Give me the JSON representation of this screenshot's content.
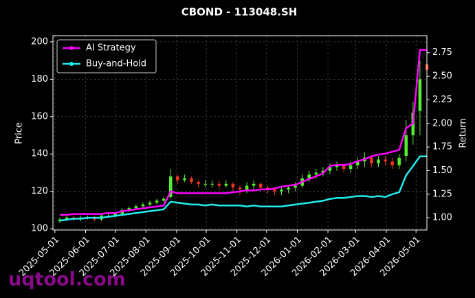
{
  "chart_data": {
    "type": "candlestick",
    "title": "CBOND - 113048.SH",
    "ylabel": "Price",
    "y2label": "Return",
    "watermark": "uqtool.com",
    "x": [
      "2025-05-06",
      "2025-05-13",
      "2025-05-20",
      "2025-05-27",
      "2025-06-03",
      "2025-06-10",
      "2025-06-17",
      "2025-06-24",
      "2025-07-01",
      "2025-07-08",
      "2025-07-15",
      "2025-07-22",
      "2025-07-29",
      "2025-08-05",
      "2025-08-12",
      "2025-08-19",
      "2025-08-26",
      "2025-09-02",
      "2025-09-09",
      "2025-09-16",
      "2025-09-23",
      "2025-09-30",
      "2025-10-07",
      "2025-10-14",
      "2025-10-21",
      "2025-10-28",
      "2025-11-04",
      "2025-11-11",
      "2025-11-18",
      "2025-11-25",
      "2025-12-02",
      "2025-12-09",
      "2025-12-16",
      "2025-12-23",
      "2025-12-30",
      "2026-01-06",
      "2026-01-13",
      "2026-01-20",
      "2026-01-27",
      "2026-02-03",
      "2026-02-10",
      "2026-02-17",
      "2026-02-24",
      "2026-03-03",
      "2026-03-10",
      "2026-03-17",
      "2026-03-24",
      "2026-03-31",
      "2026-04-07",
      "2026-04-14",
      "2026-04-21",
      "2026-04-28",
      "2026-05-05",
      "2026-05-12"
    ],
    "open": [
      104,
      105,
      106,
      105,
      106,
      106,
      105,
      107,
      107,
      108,
      110,
      111,
      112,
      113,
      114,
      115,
      117,
      128,
      126,
      127,
      125,
      124,
      124,
      124,
      123,
      124,
      122,
      121,
      123,
      124,
      122,
      121,
      120,
      121,
      122,
      123,
      127,
      129,
      130,
      131,
      133,
      134,
      132,
      134,
      136,
      138,
      135,
      137,
      136,
      134,
      139,
      150,
      163,
      188
    ],
    "high": [
      106,
      107,
      107,
      107,
      107,
      107,
      108,
      108,
      109,
      111,
      112,
      113,
      114,
      115,
      116,
      117,
      132,
      129,
      129,
      128,
      126,
      126,
      126,
      126,
      126,
      125,
      123,
      125,
      126,
      125,
      123,
      122,
      122,
      123,
      125,
      129,
      131,
      132,
      133,
      135,
      136,
      135,
      136,
      138,
      141,
      139,
      139,
      139,
      138,
      140,
      158,
      168,
      190,
      197
    ],
    "low": [
      103,
      104,
      104,
      104,
      105,
      104,
      104,
      106,
      106,
      107,
      109,
      110,
      111,
      112,
      113,
      114,
      116,
      124,
      125,
      124,
      122,
      122,
      122,
      121,
      122,
      120,
      118,
      119,
      121,
      120,
      119,
      118,
      118,
      119,
      120,
      122,
      125,
      127,
      128,
      129,
      131,
      130,
      130,
      132,
      133,
      133,
      133,
      134,
      132,
      132,
      136,
      145,
      150,
      175
    ],
    "close": [
      105,
      106,
      105,
      106,
      106,
      105,
      107,
      107,
      108,
      110,
      111,
      112,
      113,
      114,
      115,
      116,
      128,
      126,
      127,
      125,
      124,
      124,
      124,
      123,
      124,
      122,
      121,
      123,
      124,
      122,
      121,
      120,
      121,
      122,
      123,
      127,
      129,
      130,
      131,
      133,
      134,
      132,
      134,
      136,
      138,
      135,
      137,
      136,
      134,
      138,
      150,
      162,
      180,
      185
    ],
    "up_color": "#55ee33",
    "down_color": "#ee3322",
    "series": [
      {
        "name": "AI Strategy",
        "color": "#ff00ff",
        "axis": "y2",
        "values": [
          1.03,
          1.03,
          1.04,
          1.04,
          1.04,
          1.04,
          1.04,
          1.05,
          1.05,
          1.07,
          1.08,
          1.09,
          1.1,
          1.11,
          1.12,
          1.13,
          1.28,
          1.26,
          1.26,
          1.26,
          1.26,
          1.26,
          1.26,
          1.26,
          1.26,
          1.27,
          1.28,
          1.29,
          1.29,
          1.3,
          1.3,
          1.31,
          1.33,
          1.34,
          1.35,
          1.38,
          1.41,
          1.44,
          1.47,
          1.55,
          1.56,
          1.56,
          1.57,
          1.6,
          1.62,
          1.65,
          1.67,
          1.68,
          1.7,
          1.72,
          1.95,
          2.0,
          2.78,
          2.78
        ]
      },
      {
        "name": "Buy-and-Hold",
        "color": "#22eeee",
        "axis": "y2",
        "values": [
          0.97,
          0.98,
          0.99,
          0.99,
          1.0,
          1.0,
          1.0,
          1.01,
          1.02,
          1.03,
          1.04,
          1.05,
          1.06,
          1.07,
          1.08,
          1.09,
          1.17,
          1.16,
          1.15,
          1.14,
          1.14,
          1.13,
          1.14,
          1.13,
          1.13,
          1.13,
          1.13,
          1.12,
          1.13,
          1.12,
          1.12,
          1.12,
          1.12,
          1.13,
          1.14,
          1.15,
          1.16,
          1.17,
          1.18,
          1.2,
          1.21,
          1.21,
          1.22,
          1.23,
          1.23,
          1.22,
          1.23,
          1.22,
          1.25,
          1.27,
          1.45,
          1.55,
          1.65,
          1.65
        ]
      }
    ],
    "xlim": [
      "2025-04-29",
      "2026-05-12"
    ],
    "xticks": [
      "2025-05-01",
      "2025-06-01",
      "2025-07-01",
      "2025-08-01",
      "2025-09-01",
      "2025-10-01",
      "2025-11-01",
      "2025-12-01",
      "2026-01-01",
      "2026-02-01",
      "2026-03-01",
      "2026-04-01",
      "2026-05-01"
    ],
    "ylim": [
      99.3,
      203.3
    ],
    "yticks": [
      100,
      120,
      140,
      160,
      180,
      200
    ],
    "y2lim": [
      0.87,
      2.93
    ],
    "y2ticks": [
      {
        "value": 1,
        "label": "1.00"
      },
      {
        "value": 1.25,
        "label": "1.25"
      },
      {
        "value": 1.5,
        "label": "1.50"
      },
      {
        "value": 1.75,
        "label": "1.75"
      },
      {
        "value": 2,
        "label": "2.00"
      },
      {
        "value": 2.25,
        "label": "2.25"
      },
      {
        "value": 2.5,
        "label": "2.50"
      },
      {
        "value": 2.75,
        "label": "2.75"
      }
    ],
    "grid": true,
    "legend": "upper left"
  }
}
